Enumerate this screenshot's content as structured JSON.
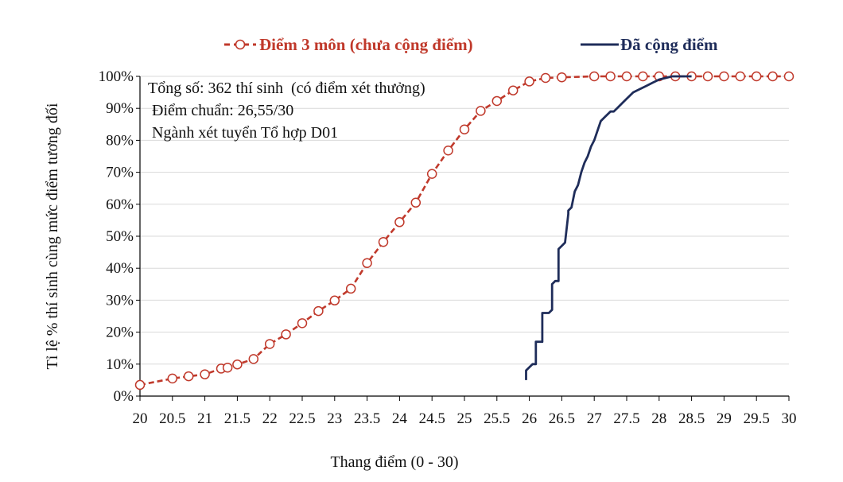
{
  "colors": {
    "raw": "#c0392b",
    "bonus": "#1f2d5a",
    "grid": "#d9d9d9",
    "axis": "#000000"
  },
  "chart_data": {
    "type": "line",
    "title": "",
    "xlabel": "Thang điểm (0 - 30)",
    "ylabel": "Tỉ lệ % thí sinh cùng mức điểm tương đối",
    "xlim": [
      20,
      30
    ],
    "ylim": [
      0,
      100
    ],
    "x_ticks": [
      20,
      20.5,
      21,
      21.5,
      22,
      22.5,
      23,
      23.5,
      24,
      24.5,
      25,
      25.5,
      26,
      26.5,
      27,
      27.5,
      28,
      28.5,
      29,
      29.5,
      30
    ],
    "x_tick_labels": [
      "20",
      "20.5",
      "21",
      "21.5",
      "22",
      "22.5",
      "23",
      "23.5",
      "24",
      "24.5",
      "25",
      "25.5",
      "26",
      "26.5",
      "27",
      "27.5",
      "28",
      "28.5",
      "29",
      "29.5",
      "30"
    ],
    "y_ticks": [
      0,
      10,
      20,
      30,
      40,
      50,
      60,
      70,
      80,
      90,
      100
    ],
    "y_tick_labels": [
      "0%",
      "10%",
      "20%",
      "30%",
      "40%",
      "50%",
      "60%",
      "70%",
      "80%",
      "90%",
      "100%"
    ],
    "grid": true,
    "legend_position": "top",
    "annotations": [
      "Tổng số: 362 thí sinh  (có điểm xét thưởng)",
      " Điểm chuẩn: 26,55/30",
      " Ngành xét tuyển Tổ hợp D01"
    ],
    "series": [
      {
        "name": "Điểm 3 môn (chưa cộng điểm)",
        "style": "dashed-with-circle-markers",
        "x": [
          20,
          20.5,
          20.75,
          21,
          21.25,
          21.35,
          21.5,
          21.75,
          22,
          22.25,
          22.5,
          22.75,
          23,
          23.25,
          23.5,
          23.75,
          24,
          24.25,
          24.5,
          24.75,
          25,
          25.25,
          25.5,
          25.75,
          26,
          26.25,
          26.5,
          27,
          27.25,
          27.5,
          27.75,
          28,
          28.25,
          28.5,
          28.75,
          29,
          29.25,
          29.5,
          29.75,
          30
        ],
        "y": [
          3.5,
          5.5,
          6.2,
          6.8,
          8.6,
          8.9,
          9.9,
          11.6,
          16.3,
          19.3,
          22.8,
          26.6,
          29.9,
          33.6,
          41.6,
          48.2,
          54.4,
          60.5,
          69.5,
          76.8,
          83.4,
          89.2,
          92.3,
          95.6,
          98.4,
          99.5,
          99.7,
          100,
          100,
          100,
          100,
          100,
          100,
          100,
          100,
          100,
          100,
          100,
          100,
          100
        ]
      },
      {
        "name": "Đã cộng điểm",
        "style": "solid",
        "x": [
          25.95,
          25.95,
          26.0,
          26.05,
          26.1,
          26.1,
          26.2,
          26.2,
          26.3,
          26.35,
          26.35,
          26.4,
          26.45,
          26.45,
          26.5,
          26.55,
          26.6,
          26.6,
          26.65,
          26.7,
          26.75,
          26.8,
          26.85,
          26.9,
          26.95,
          27.0,
          27.05,
          27.1,
          27.15,
          27.2,
          27.25,
          27.3,
          27.35,
          27.4,
          27.5,
          27.55,
          27.6,
          27.7,
          27.8,
          27.9,
          28.0,
          28.1,
          28.2,
          28.3,
          28.5
        ],
        "y": [
          5,
          8,
          9,
          10,
          10,
          17,
          17,
          26,
          26,
          27,
          35,
          36,
          36,
          46,
          47,
          48,
          57,
          58,
          59,
          64,
          66,
          70,
          73,
          75,
          78,
          80,
          83,
          86,
          87,
          88,
          89,
          89,
          90,
          91,
          93,
          94,
          95,
          96,
          97,
          98,
          99,
          99.5,
          100,
          100,
          100
        ]
      }
    ]
  }
}
